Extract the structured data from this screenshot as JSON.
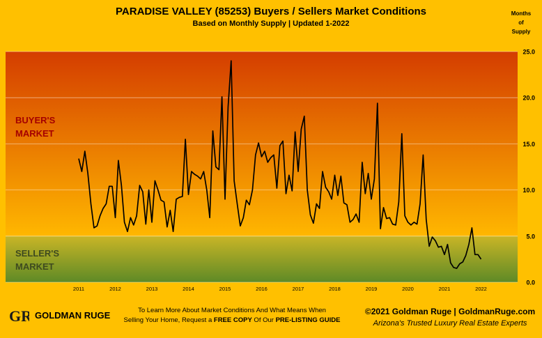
{
  "header": {
    "title": "PARADISE VALLEY (85253) Buyers / Sellers Market Conditions",
    "subtitle": "Based on Monthly Supply | Updated 1-2022",
    "y_unit_lines": [
      "Months",
      "of",
      "Supply"
    ]
  },
  "zones": {
    "buyers_label": [
      "BUYER'S",
      "MARKET"
    ],
    "sellers_label": [
      "SELLER'S",
      "MARKET"
    ]
  },
  "colors": {
    "background": "#ffc000",
    "buyers_zone_top": "#d43d00",
    "buyers_zone_bottom": "#ffb700",
    "sellers_zone_top": "#c9b526",
    "sellers_zone_bottom": "#5e8a26",
    "line": "#000000"
  },
  "chart_data": {
    "type": "line",
    "title": "PARADISE VALLEY (85253) Buyers / Sellers Market Conditions",
    "subtitle": "Based on Monthly Supply | Updated 1-2022",
    "ylabel": "Months of Supply",
    "ylim": [
      0,
      25
    ],
    "yticks": [
      "0.0",
      "5.0",
      "10.0",
      "15.0",
      "20.0",
      "25.0"
    ],
    "xticks": [
      "2011",
      "2012",
      "2013",
      "2014",
      "2015",
      "2016",
      "2017",
      "2018",
      "2019",
      "2020",
      "2021",
      "2022"
    ],
    "x_start": "2011-01",
    "grid": true,
    "series": [
      {
        "values": [
          13.4,
          12.0,
          14.2,
          11.8,
          8.5,
          5.9,
          6.1,
          7.2,
          8.0,
          8.5,
          10.4,
          10.4,
          7.0,
          13.2,
          10.5,
          6.5,
          5.5,
          7.0,
          6.2,
          7.2,
          10.5,
          9.8,
          6.3,
          10.0,
          6.5,
          11.0,
          10.0,
          8.9,
          8.7,
          6.0,
          7.8,
          5.5,
          9.0,
          9.2,
          9.3,
          15.5,
          9.5,
          12.0,
          11.7,
          11.5,
          11.2,
          12.0,
          10.0,
          7.0,
          16.4,
          12.5,
          12.2,
          20.1,
          9.0,
          19.0,
          24.0,
          11.0,
          8.5,
          6.1,
          7.0,
          8.9,
          8.4,
          10.0,
          13.8,
          15.1,
          13.6,
          14.2,
          13.0,
          13.5,
          13.8,
          10.2,
          14.8,
          15.3,
          9.6,
          11.6,
          9.9,
          16.3,
          12.0,
          16.6,
          18.0,
          10.0,
          7.3,
          6.4,
          8.5,
          8.0,
          12.0,
          10.3,
          9.8,
          9.0,
          11.6,
          9.4,
          11.5,
          8.6,
          8.4,
          6.5,
          6.8,
          7.4,
          6.5,
          13.0,
          9.6,
          11.8,
          9.0,
          11.2,
          19.4,
          5.8,
          8.1,
          6.9,
          7.0,
          6.3,
          6.2,
          8.7,
          16.1,
          7.2,
          6.5,
          6.2,
          6.5,
          6.3,
          8.5,
          13.8,
          6.8,
          3.9,
          4.9,
          4.5,
          3.8,
          3.9,
          3.0,
          4.1,
          2.1,
          1.6,
          1.5,
          2.0,
          2.2,
          2.9,
          4.1,
          5.9,
          3.0,
          3.0,
          2.5
        ]
      }
    ]
  },
  "footer": {
    "logo_text": "GOLDMAN RUGE",
    "logo_mark": "GR",
    "cta_line1": "To Learn More About Market Conditions And What Means When",
    "cta_line2_pre": "Selling Your Home, Request a ",
    "cta_bold1": "FREE COPY",
    "cta_mid": " Of Our ",
    "cta_bold2": "PRE-LISTING GUIDE",
    "copyright": "©2021 Goldman Ruge  |  GoldmanRuge.com",
    "tagline": "Arizona's Trusted Luxury Real Estate Experts"
  }
}
